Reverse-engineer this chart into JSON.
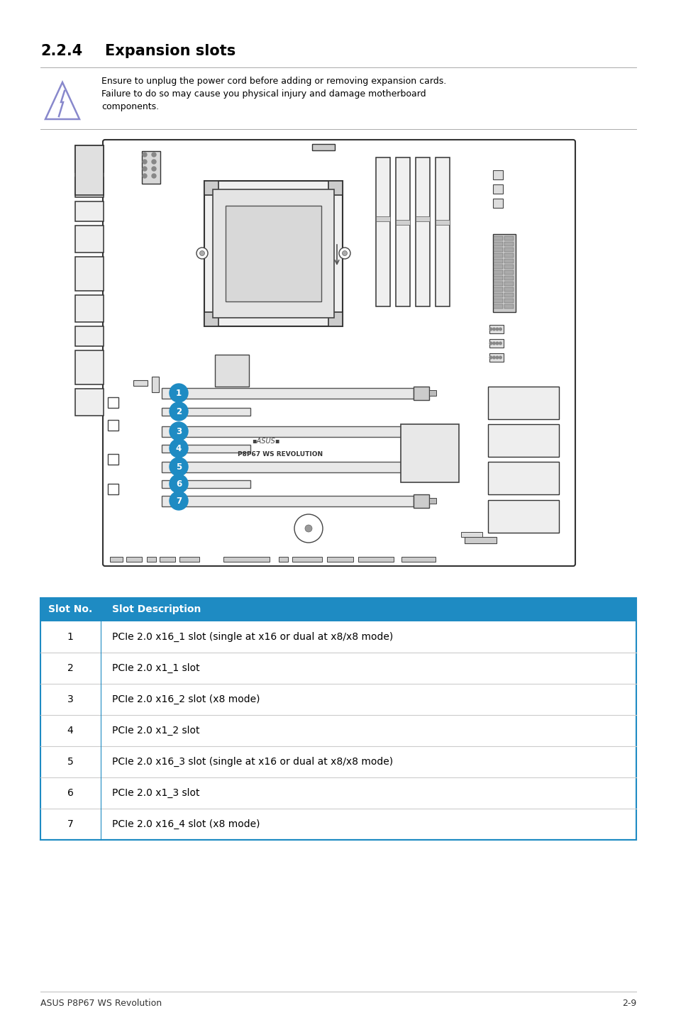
{
  "title_num": "2.2.4",
  "title_text": "Expansion slots",
  "warning_text_line1": "Ensure to unplug the power cord before adding or removing expansion cards.",
  "warning_text_line2": "Failure to do so may cause you physical injury and damage motherboard",
  "warning_text_line3": "components.",
  "table_header": [
    "Slot No.",
    "Slot Description"
  ],
  "table_rows": [
    [
      "1",
      "PCIe 2.0 x16_1 slot (single at x16 or dual at x8/x8 mode)"
    ],
    [
      "2",
      "PCIe 2.0 x1_1 slot"
    ],
    [
      "3",
      "PCIe 2.0 x16_2 slot (x8 mode)"
    ],
    [
      "4",
      "PCIe 2.0 x1_2 slot"
    ],
    [
      "5",
      "PCIe 2.0 x16_3 slot (single at x16 or dual at x8/x8 mode)"
    ],
    [
      "6",
      "PCIe 2.0 x1_3 slot"
    ],
    [
      "7",
      "PCIe 2.0 x16_4 slot (x8 mode)"
    ]
  ],
  "footer_left": "ASUS P8P67 WS Revolution",
  "footer_right": "2-9",
  "header_bg": "#1e8bc3",
  "header_text_color": "#ffffff",
  "slot_circle_color": "#1e8bc3",
  "slot_circle_text": "#ffffff",
  "bg_color": "#ffffff",
  "table_border_color": "#1e8bc3",
  "row_line_color": "#cccccc",
  "board_edge": "#333333",
  "body_text_color": "#000000"
}
